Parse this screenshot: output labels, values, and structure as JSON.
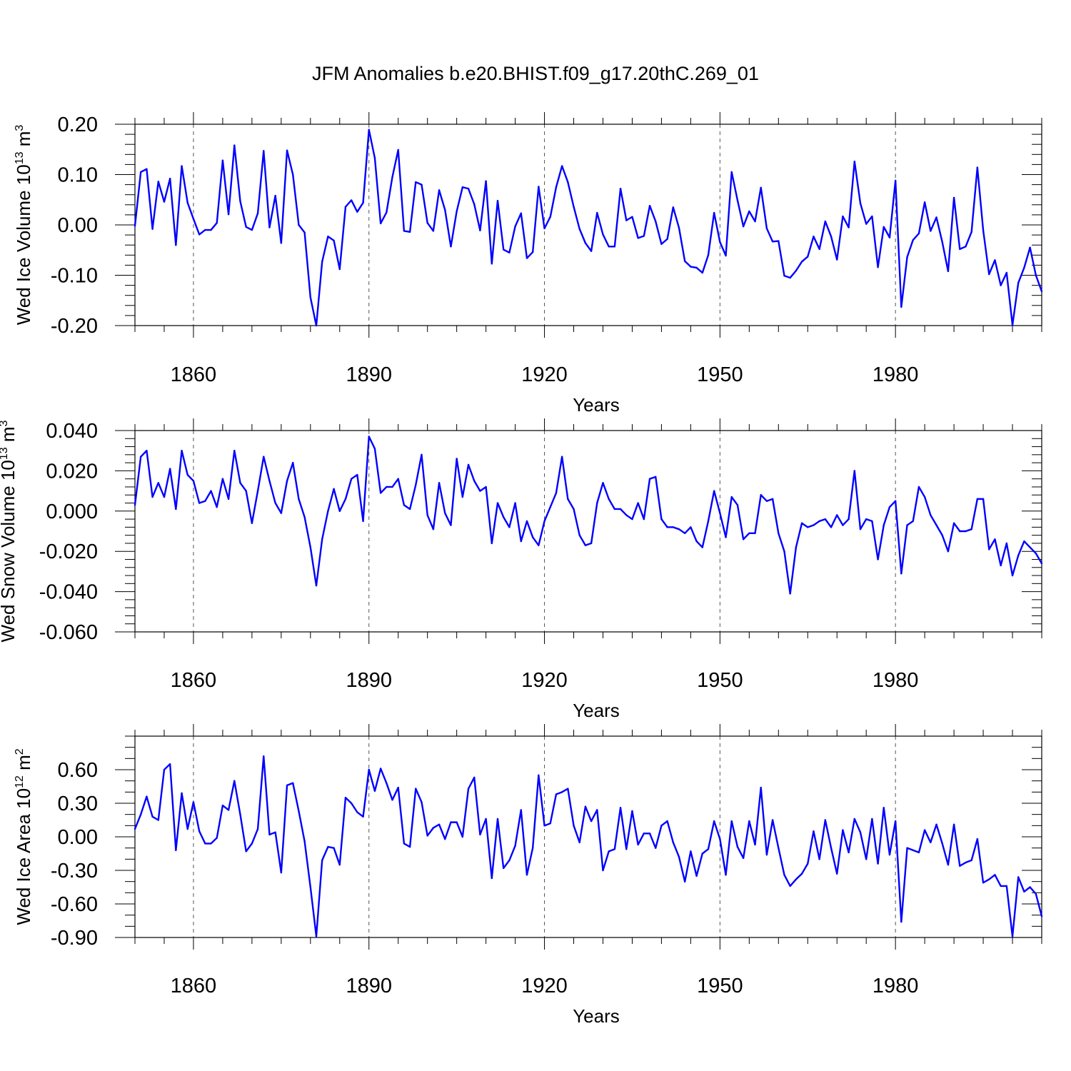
{
  "figure": {
    "title": "JFM Anomalies b.e20.BHIST.f09_g17.20thC.269_01"
  },
  "colors": {
    "series": "#0000ff",
    "axes": "#000000",
    "grid": "#555555"
  },
  "chart_data": [
    {
      "type": "line",
      "ylabel": {
        "text": "Wed Ice Volume 10",
        "sup": "13",
        "unit": " m",
        "unit_sup": "3"
      },
      "xlabel": "Years",
      "xlim": [
        1850,
        2005
      ],
      "ylim": [
        -0.2,
        0.2
      ],
      "xticks": [
        1860,
        1890,
        1920,
        1950,
        1980
      ],
      "xtick_labels": [
        "1860",
        "1890",
        "1920",
        "1950",
        "1980"
      ],
      "yticks": [
        -0.2,
        -0.1,
        0.0,
        0.1,
        0.2
      ],
      "ytick_labels": [
        "-0.20",
        "-0.10",
        "0.00",
        "0.10",
        "0.20"
      ],
      "yminor_step": 0.02,
      "grid": "vertical dashed at major x ticks",
      "x_start": 1850,
      "values": [
        -0.002,
        0.105,
        0.111,
        -0.008,
        0.086,
        0.046,
        0.092,
        -0.04,
        0.117,
        0.044,
        0.012,
        -0.019,
        -0.01,
        -0.01,
        0.004,
        0.128,
        0.021,
        0.158,
        0.047,
        -0.004,
        -0.01,
        0.023,
        0.147,
        -0.005,
        0.058,
        -0.036,
        0.148,
        0.1,
        0.0,
        -0.015,
        -0.144,
        -0.2,
        -0.073,
        -0.023,
        -0.031,
        -0.088,
        0.036,
        0.049,
        0.026,
        0.044,
        0.189,
        0.133,
        0.003,
        0.025,
        0.095,
        0.149,
        -0.012,
        -0.014,
        0.085,
        0.08,
        0.004,
        -0.012,
        0.069,
        0.03,
        -0.043,
        0.027,
        0.075,
        0.072,
        0.041,
        -0.011,
        0.087,
        -0.077,
        0.048,
        -0.049,
        -0.055,
        -0.003,
        0.023,
        -0.066,
        -0.054,
        0.076,
        -0.007,
        0.016,
        0.075,
        0.117,
        0.085,
        0.036,
        -0.008,
        -0.036,
        -0.052,
        0.024,
        -0.019,
        -0.043,
        -0.043,
        0.072,
        0.009,
        0.016,
        -0.026,
        -0.022,
        0.038,
        0.007,
        -0.038,
        -0.028,
        0.035,
        -0.006,
        -0.072,
        -0.083,
        -0.085,
        -0.095,
        -0.06,
        0.024,
        -0.034,
        -0.061,
        0.105,
        0.049,
        -0.003,
        0.027,
        0.007,
        0.074,
        -0.007,
        -0.033,
        -0.032,
        -0.101,
        -0.105,
        -0.091,
        -0.073,
        -0.063,
        -0.023,
        -0.048,
        0.007,
        -0.023,
        -0.069,
        0.017,
        -0.005,
        0.126,
        0.043,
        0.002,
        0.017,
        -0.084,
        -0.004,
        -0.025,
        0.088,
        -0.163,
        -0.064,
        -0.03,
        -0.017,
        0.045,
        -0.012,
        0.015,
        -0.034,
        -0.092,
        0.054,
        -0.048,
        -0.043,
        -0.014,
        0.114,
        -0.011,
        -0.098,
        -0.07,
        -0.12,
        -0.095,
        -0.199,
        -0.115,
        -0.085,
        -0.045,
        -0.1,
        -0.132
      ]
    },
    {
      "type": "line",
      "ylabel": {
        "text": "Wed Snow Volume 10",
        "sup": "13",
        "unit": " m",
        "unit_sup": "3"
      },
      "xlabel": "Years",
      "xlim": [
        1850,
        2005
      ],
      "ylim": [
        -0.06,
        0.04
      ],
      "xticks": [
        1860,
        1890,
        1920,
        1950,
        1980
      ],
      "xtick_labels": [
        "1860",
        "1890",
        "1920",
        "1950",
        "1980"
      ],
      "yticks": [
        -0.06,
        -0.04,
        -0.02,
        0.0,
        0.02,
        0.04
      ],
      "ytick_labels": [
        "-0.060",
        "-0.040",
        "-0.020",
        "0.000",
        "0.020",
        "0.040"
      ],
      "yminor_step": 0.004,
      "grid": "vertical dashed at major x ticks",
      "x_start": 1850,
      "values": [
        0.003,
        0.027,
        0.03,
        0.007,
        0.014,
        0.007,
        0.021,
        0.001,
        0.03,
        0.018,
        0.015,
        0.004,
        0.005,
        0.01,
        0.002,
        0.016,
        0.006,
        0.03,
        0.014,
        0.01,
        -0.006,
        0.01,
        0.027,
        0.015,
        0.004,
        -0.001,
        0.015,
        0.024,
        0.006,
        -0.003,
        -0.018,
        -0.037,
        -0.014,
        0.0,
        0.011,
        0.0,
        0.006,
        0.016,
        0.018,
        -0.005,
        0.037,
        0.031,
        0.009,
        0.012,
        0.012,
        0.016,
        0.003,
        0.001,
        0.013,
        0.028,
        -0.002,
        -0.009,
        0.014,
        -0.001,
        -0.007,
        0.026,
        0.007,
        0.023,
        0.015,
        0.01,
        0.012,
        -0.016,
        0.004,
        -0.003,
        -0.008,
        0.004,
        -0.015,
        -0.005,
        -0.013,
        -0.017,
        -0.005,
        0.002,
        0.009,
        0.027,
        0.006,
        0.001,
        -0.012,
        -0.017,
        -0.016,
        0.004,
        0.014,
        0.006,
        0.001,
        0.001,
        -0.002,
        -0.004,
        0.004,
        -0.004,
        0.016,
        0.017,
        -0.004,
        -0.008,
        -0.008,
        -0.009,
        -0.011,
        -0.008,
        -0.015,
        -0.018,
        -0.005,
        0.01,
        -0.001,
        -0.013,
        0.007,
        0.003,
        -0.014,
        -0.011,
        -0.011,
        0.008,
        0.005,
        0.006,
        -0.011,
        -0.02,
        -0.041,
        -0.018,
        -0.006,
        -0.008,
        -0.007,
        -0.005,
        -0.004,
        -0.008,
        -0.002,
        -0.007,
        -0.004,
        0.02,
        -0.009,
        -0.004,
        -0.005,
        -0.024,
        -0.007,
        0.002,
        0.005,
        -0.031,
        -0.007,
        -0.005,
        0.012,
        0.007,
        -0.002,
        -0.007,
        -0.012,
        -0.02,
        -0.006,
        -0.01,
        -0.01,
        -0.009,
        0.006,
        0.006,
        -0.019,
        -0.014,
        -0.027,
        -0.016,
        -0.032,
        -0.022,
        -0.015,
        -0.018,
        -0.021,
        -0.026
      ]
    },
    {
      "type": "line",
      "ylabel": {
        "text": "Wed Ice Area 10",
        "sup": "12",
        "unit": " m",
        "unit_sup": "2"
      },
      "xlabel": "Years",
      "xlim": [
        1850,
        2005
      ],
      "ylim": [
        -0.9,
        0.9
      ],
      "xticks": [
        1860,
        1890,
        1920,
        1950,
        1980
      ],
      "xtick_labels": [
        "1860",
        "1890",
        "1920",
        "1950",
        "1980"
      ],
      "yticks": [
        -0.9,
        -0.6,
        -0.3,
        0.0,
        0.3,
        0.6
      ],
      "ytick_labels": [
        "-0.90",
        "-0.60",
        "-0.30",
        "0.00",
        "0.30",
        "0.60"
      ],
      "yminor_step": 0.1,
      "grid": "vertical dashed at major x ticks",
      "x_start": 1850,
      "values": [
        0.07,
        0.2,
        0.36,
        0.18,
        0.15,
        0.6,
        0.65,
        -0.12,
        0.39,
        0.07,
        0.31,
        0.05,
        -0.06,
        -0.06,
        -0.01,
        0.28,
        0.24,
        0.5,
        0.2,
        -0.13,
        -0.06,
        0.07,
        0.72,
        0.02,
        0.04,
        -0.32,
        0.46,
        0.48,
        0.23,
        -0.04,
        -0.45,
        -0.89,
        -0.21,
        -0.09,
        -0.1,
        -0.25,
        0.35,
        0.3,
        0.22,
        0.18,
        0.6,
        0.41,
        0.61,
        0.48,
        0.33,
        0.44,
        -0.06,
        -0.09,
        0.43,
        0.31,
        0.01,
        0.08,
        0.11,
        -0.02,
        0.13,
        0.13,
        0.0,
        0.43,
        0.53,
        0.02,
        0.16,
        -0.37,
        0.16,
        -0.28,
        -0.21,
        -0.08,
        0.24,
        -0.34,
        -0.1,
        0.55,
        0.1,
        0.12,
        0.38,
        0.4,
        0.43,
        0.1,
        -0.05,
        0.27,
        0.14,
        0.24,
        -0.3,
        -0.13,
        -0.11,
        0.26,
        -0.11,
        0.23,
        -0.07,
        0.03,
        0.03,
        -0.1,
        0.1,
        0.14,
        -0.05,
        -0.18,
        -0.4,
        -0.13,
        -0.35,
        -0.15,
        -0.11,
        0.14,
        -0.02,
        -0.34,
        0.14,
        -0.09,
        -0.19,
        0.14,
        -0.07,
        0.44,
        -0.16,
        0.15,
        -0.1,
        -0.34,
        -0.44,
        -0.38,
        -0.33,
        -0.24,
        0.05,
        -0.2,
        0.15,
        -0.1,
        -0.33,
        0.06,
        -0.14,
        0.16,
        0.04,
        -0.2,
        0.16,
        -0.24,
        0.26,
        -0.16,
        0.14,
        -0.76,
        -0.1,
        -0.12,
        -0.14,
        0.06,
        -0.05,
        0.11,
        -0.06,
        -0.25,
        0.11,
        -0.26,
        -0.23,
        -0.21,
        -0.02,
        -0.41,
        -0.38,
        -0.34,
        -0.44,
        -0.44,
        -0.89,
        -0.36,
        -0.49,
        -0.45,
        -0.51,
        -0.71
      ]
    }
  ]
}
